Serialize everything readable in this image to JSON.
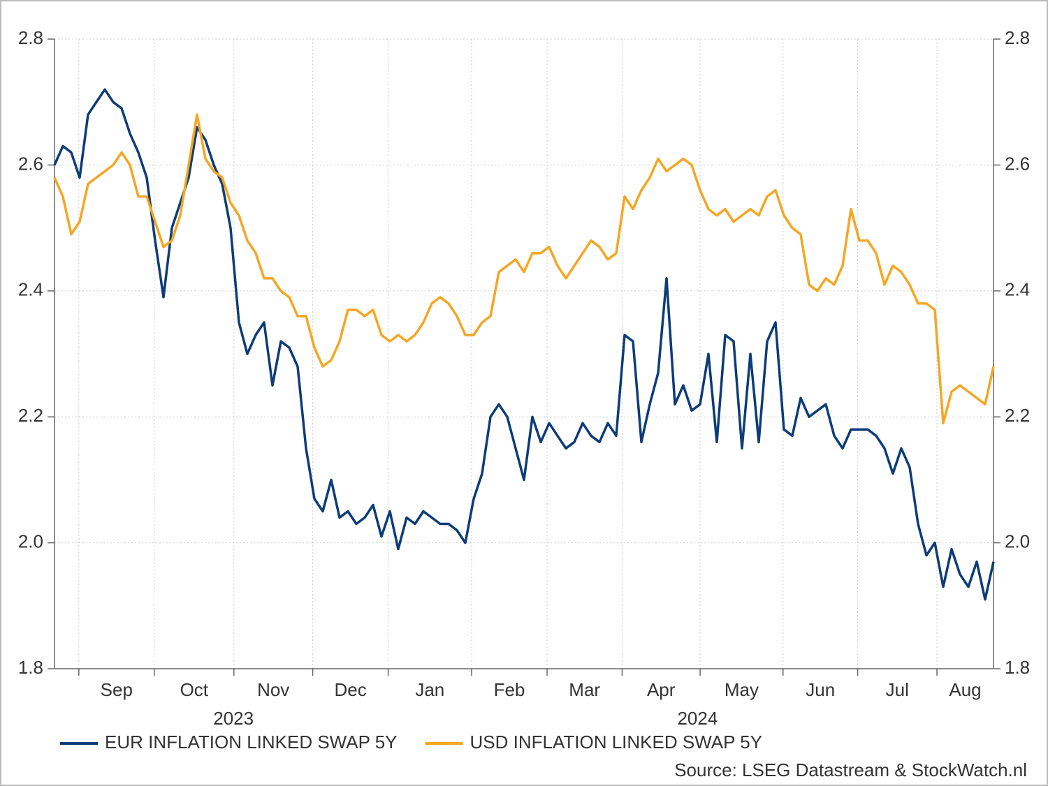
{
  "chart_data": {
    "type": "line",
    "series": [
      {
        "name": "EUR INFLATION LINKED SWAP 5Y",
        "color": "#0d3c78",
        "values": [
          2.6,
          2.63,
          2.62,
          2.58,
          2.68,
          2.7,
          2.72,
          2.7,
          2.69,
          2.65,
          2.62,
          2.58,
          2.48,
          2.39,
          2.5,
          2.54,
          2.58,
          2.66,
          2.64,
          2.6,
          2.57,
          2.5,
          2.35,
          2.3,
          2.33,
          2.35,
          2.25,
          2.32,
          2.31,
          2.28,
          2.15,
          2.07,
          2.05,
          2.1,
          2.04,
          2.05,
          2.03,
          2.04,
          2.06,
          2.01,
          2.05,
          1.99,
          2.04,
          2.03,
          2.05,
          2.04,
          2.03,
          2.03,
          2.02,
          2.0,
          2.07,
          2.11,
          2.2,
          2.22,
          2.2,
          2.15,
          2.1,
          2.2,
          2.16,
          2.19,
          2.17,
          2.15,
          2.16,
          2.19,
          2.17,
          2.16,
          2.19,
          2.17,
          2.33,
          2.32,
          2.16,
          2.22,
          2.27,
          2.42,
          2.22,
          2.25,
          2.21,
          2.22,
          2.3,
          2.16,
          2.33,
          2.32,
          2.15,
          2.3,
          2.16,
          2.32,
          2.35,
          2.18,
          2.17,
          2.23,
          2.2,
          2.21,
          2.22,
          2.17,
          2.15,
          2.18,
          2.18,
          2.18,
          2.17,
          2.15,
          2.11,
          2.15,
          2.12,
          2.03,
          1.98,
          2.0,
          1.93,
          1.99,
          1.95,
          1.93,
          1.97,
          1.91,
          1.97
        ]
      },
      {
        "name": "USD INFLATION LINKED SWAP 5Y",
        "color": "#f5a623",
        "values": [
          2.58,
          2.55,
          2.49,
          2.51,
          2.57,
          2.58,
          2.59,
          2.6,
          2.62,
          2.6,
          2.55,
          2.55,
          2.51,
          2.47,
          2.48,
          2.52,
          2.6,
          2.68,
          2.61,
          2.59,
          2.58,
          2.54,
          2.52,
          2.48,
          2.46,
          2.42,
          2.42,
          2.4,
          2.39,
          2.36,
          2.36,
          2.31,
          2.28,
          2.29,
          2.32,
          2.37,
          2.37,
          2.36,
          2.37,
          2.33,
          2.32,
          2.33,
          2.32,
          2.33,
          2.35,
          2.38,
          2.39,
          2.38,
          2.36,
          2.33,
          2.33,
          2.35,
          2.36,
          2.43,
          2.44,
          2.45,
          2.43,
          2.46,
          2.46,
          2.47,
          2.44,
          2.42,
          2.44,
          2.46,
          2.48,
          2.47,
          2.45,
          2.46,
          2.55,
          2.53,
          2.56,
          2.58,
          2.61,
          2.59,
          2.6,
          2.61,
          2.6,
          2.56,
          2.53,
          2.52,
          2.53,
          2.51,
          2.52,
          2.53,
          2.52,
          2.55,
          2.56,
          2.52,
          2.5,
          2.49,
          2.41,
          2.4,
          2.42,
          2.41,
          2.44,
          2.53,
          2.48,
          2.48,
          2.46,
          2.41,
          2.44,
          2.43,
          2.41,
          2.38,
          2.38,
          2.37,
          2.19,
          2.24,
          2.25,
          2.24,
          2.23,
          2.22,
          2.28
        ]
      }
    ],
    "xlim": [
      0,
      112
    ],
    "xticks": [
      {
        "value": 2.9,
        "label": "Sep"
      },
      {
        "value": 11.9,
        "label": "Oct"
      },
      {
        "value": 21.4,
        "label": "Nov"
      },
      {
        "value": 30.8,
        "label": "Dec"
      },
      {
        "value": 39.8,
        "label": "Jan"
      },
      {
        "value": 49.75,
        "label": "Feb"
      },
      {
        "value": 58.75,
        "label": "Mar"
      },
      {
        "value": 67.7,
        "label": "Apr"
      },
      {
        "value": 77,
        "label": "May"
      },
      {
        "value": 86.9,
        "label": "Jun"
      },
      {
        "value": 95.8,
        "label": "Jul"
      },
      {
        "value": 105.25,
        "label": "Aug"
      }
    ],
    "years": [
      {
        "label": "2023",
        "first_tick": 0,
        "last_tick": 3
      },
      {
        "label": "2024",
        "first_tick": 4,
        "last_tick": 11
      }
    ],
    "ylim": [
      1.8,
      2.8
    ],
    "yticks": [
      1.8,
      {
        "value": 2,
        "label": "2.0"
      },
      2.2,
      2.4,
      2.6,
      2.8
    ],
    "grid": true,
    "legend": "bottom-left",
    "source": "Source: LSEG Datastream & StockWatch.nl"
  }
}
